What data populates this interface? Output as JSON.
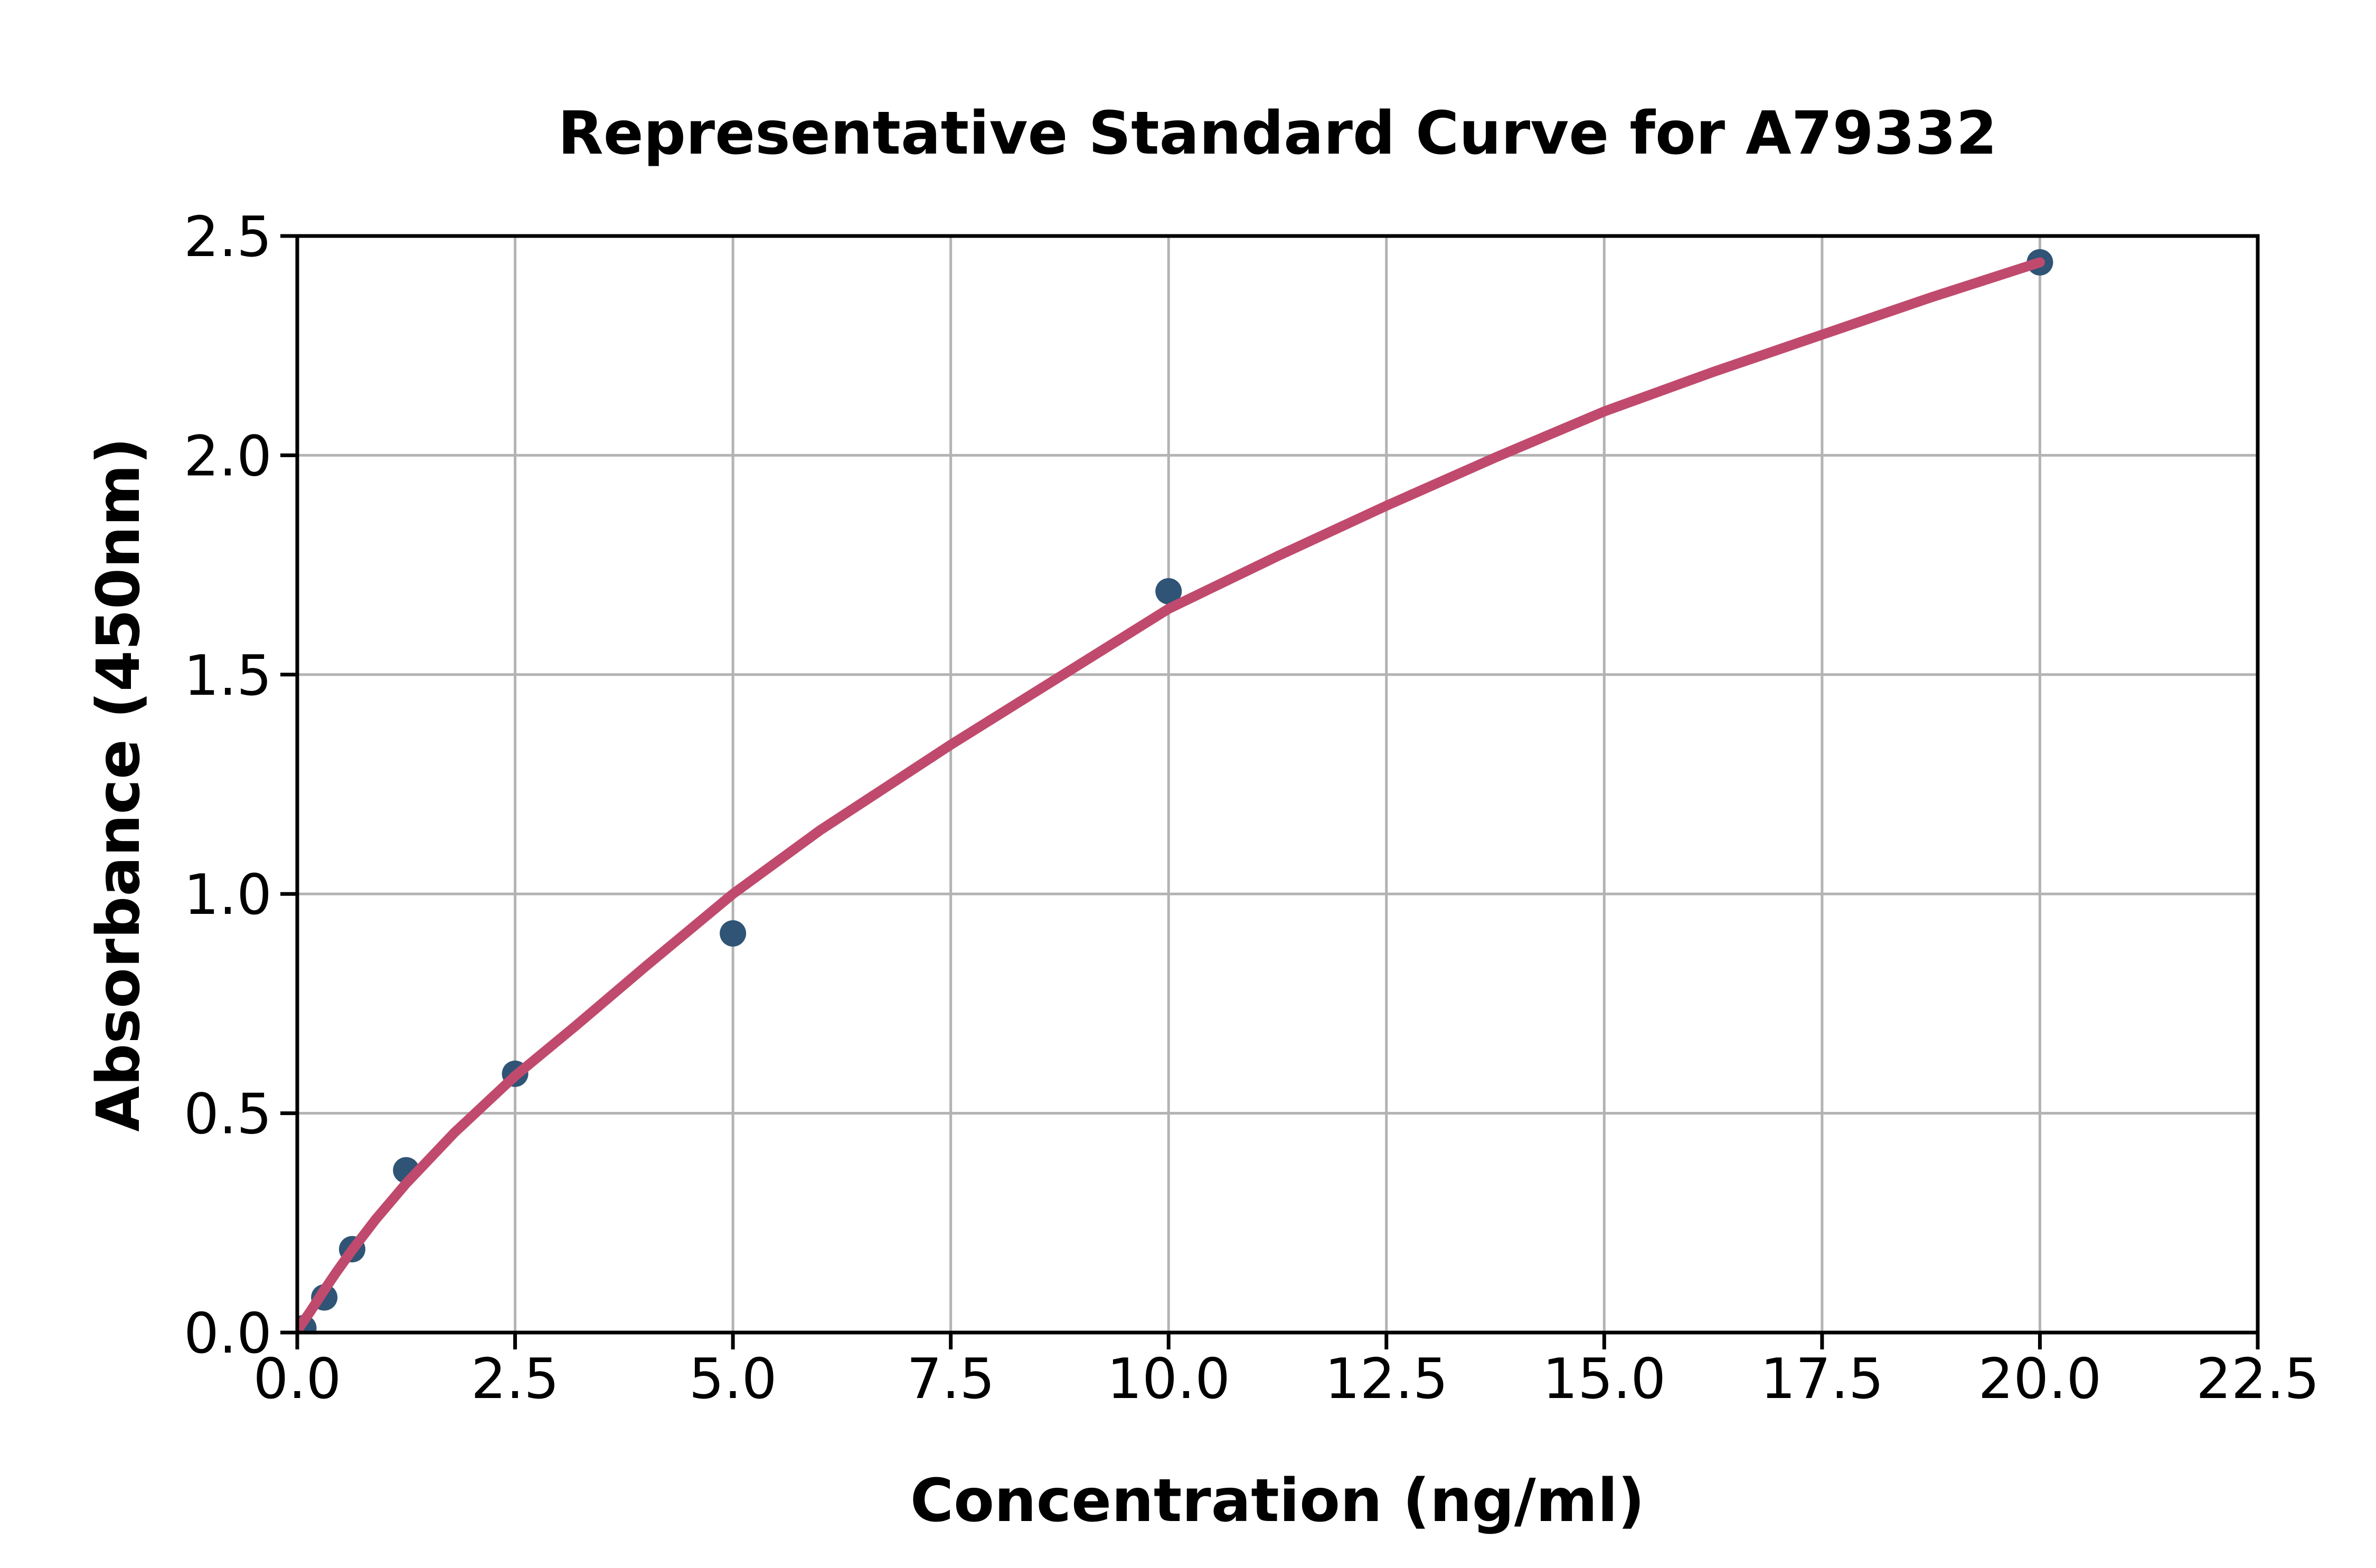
{
  "chart_data": {
    "type": "scatter",
    "title": "Representative Standard Curve for A79332",
    "xlabel": "Concentration (ng/ml)",
    "ylabel": "Absorbance (450nm)",
    "xlim": [
      0,
      22.5
    ],
    "ylim": [
      0,
      2.5
    ],
    "x_tick_labels": [
      "0.0",
      "2.5",
      "5.0",
      "7.5",
      "10.0",
      "12.5",
      "15.0",
      "17.5",
      "20.0",
      "22.5"
    ],
    "y_tick_labels": [
      "0.0",
      "0.5",
      "1.0",
      "1.5",
      "2.0",
      "2.5"
    ],
    "grid": true,
    "legend_position": "none",
    "series": [
      {
        "name": "standard-points",
        "type": "scatter",
        "points": [
          [
            0.07,
            0.01
          ],
          [
            0.31,
            0.08
          ],
          [
            0.63,
            0.19
          ],
          [
            1.25,
            0.37
          ],
          [
            2.5,
            0.59
          ],
          [
            5.0,
            0.91
          ],
          [
            10.0,
            1.69
          ],
          [
            20.0,
            2.44
          ]
        ]
      },
      {
        "name": "fitted-curve",
        "type": "line",
        "points": [
          [
            0,
            0.005
          ],
          [
            0.15,
            0.048
          ],
          [
            0.31,
            0.097
          ],
          [
            0.45,
            0.138
          ],
          [
            0.63,
            0.188
          ],
          [
            0.9,
            0.258
          ],
          [
            1.25,
            0.34
          ],
          [
            1.8,
            0.455
          ],
          [
            2.5,
            0.585
          ],
          [
            3.2,
            0.7
          ],
          [
            4.0,
            0.835
          ],
          [
            5.0,
            1.0
          ],
          [
            6.0,
            1.145
          ],
          [
            7.5,
            1.34
          ],
          [
            8.75,
            1.495
          ],
          [
            10.0,
            1.65
          ],
          [
            11.25,
            1.77
          ],
          [
            12.5,
            1.885
          ],
          [
            13.75,
            1.995
          ],
          [
            15.0,
            2.1
          ],
          [
            16.25,
            2.19
          ],
          [
            17.5,
            2.275
          ],
          [
            18.75,
            2.36
          ],
          [
            20.0,
            2.44
          ]
        ]
      }
    ],
    "colors": {
      "curve": "#c04a6e",
      "marker": "#2f5475",
      "grid": "#b3b3b3",
      "spine": "#000000",
      "text": "#000000",
      "background": "#ffffff"
    }
  }
}
